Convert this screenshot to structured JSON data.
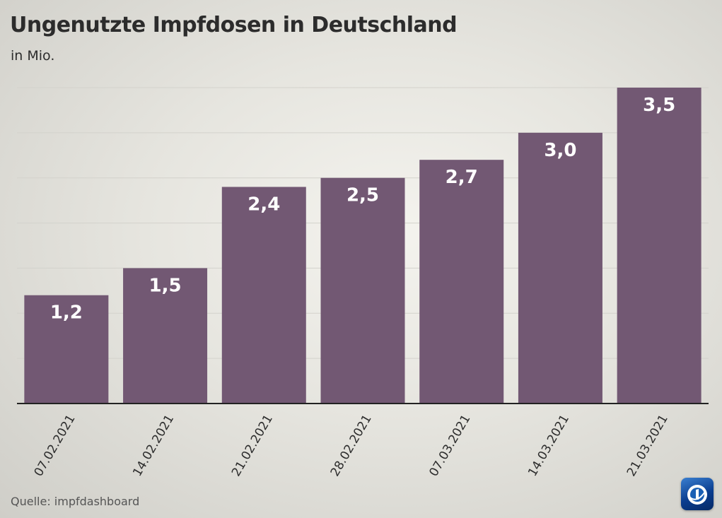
{
  "header": {
    "title": "Ungenutzte Impfdosen in Deutschland",
    "subtitle": "in Mio."
  },
  "footer": {
    "source": "Quelle: impfdashboard",
    "logo_icon": "ard-tagesschau-logo-icon"
  },
  "colors": {
    "bar": "#725873",
    "gridline": "#d3d2cc",
    "axis": "#222222",
    "value_label": "#ffffff"
  },
  "chart_data": {
    "type": "bar",
    "categories": [
      "07.02.2021",
      "14.02.2021",
      "21.02.2021",
      "28.02.2021",
      "07.03.2021",
      "14.03.2021",
      "21.03.2021"
    ],
    "values": [
      1.2,
      1.5,
      2.4,
      2.5,
      2.7,
      3.0,
      3.5
    ],
    "value_labels": [
      "1,2",
      "1,5",
      "2,4",
      "2,5",
      "2,7",
      "3,0",
      "3,5"
    ],
    "title": "Ungenutzte Impfdosen in Deutschland",
    "subtitle": "in Mio.",
    "xlabel": "",
    "ylabel": "",
    "ylim": [
      0,
      3.5
    ],
    "gridline_step": 0.5,
    "grid": true,
    "y_tick_labels_shown": false
  }
}
